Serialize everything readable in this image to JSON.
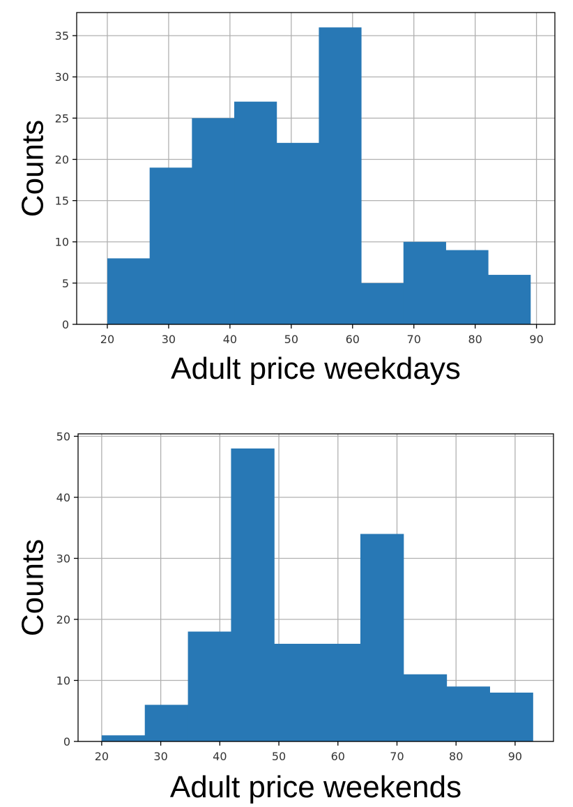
{
  "chart_data": [
    {
      "type": "bar",
      "subtype": "histogram",
      "xlabel": "Adult price weekdays",
      "ylabel": "Counts",
      "xlim": [
        15,
        93
      ],
      "ylim": [
        0,
        37.8
      ],
      "xticks": [
        20,
        30,
        40,
        50,
        60,
        70,
        80,
        90
      ],
      "yticks": [
        0,
        5,
        10,
        15,
        20,
        25,
        30,
        35
      ],
      "bin_edges": [
        20,
        26.9,
        33.8,
        40.7,
        47.6,
        54.5,
        61.4,
        68.3,
        75.2,
        82.1,
        89
      ],
      "values": [
        8,
        19,
        25,
        27,
        22,
        36,
        5,
        10,
        9,
        6
      ],
      "grid": true,
      "bar_color": "#2878b5"
    },
    {
      "type": "bar",
      "subtype": "histogram",
      "xlabel": "Adult price weekends",
      "ylabel": "Counts",
      "xlim": [
        16,
        96.5
      ],
      "ylim": [
        0,
        50.4
      ],
      "xticks": [
        20,
        30,
        40,
        50,
        60,
        70,
        80,
        90
      ],
      "yticks": [
        0,
        10,
        20,
        30,
        40,
        50
      ],
      "bin_edges": [
        20,
        27.3,
        34.6,
        41.9,
        49.2,
        56.5,
        63.8,
        71.1,
        78.4,
        85.7,
        93
      ],
      "values": [
        1,
        6,
        18,
        48,
        16,
        16,
        34,
        11,
        9,
        8
      ],
      "grid": true,
      "bar_color": "#2878b5"
    }
  ]
}
